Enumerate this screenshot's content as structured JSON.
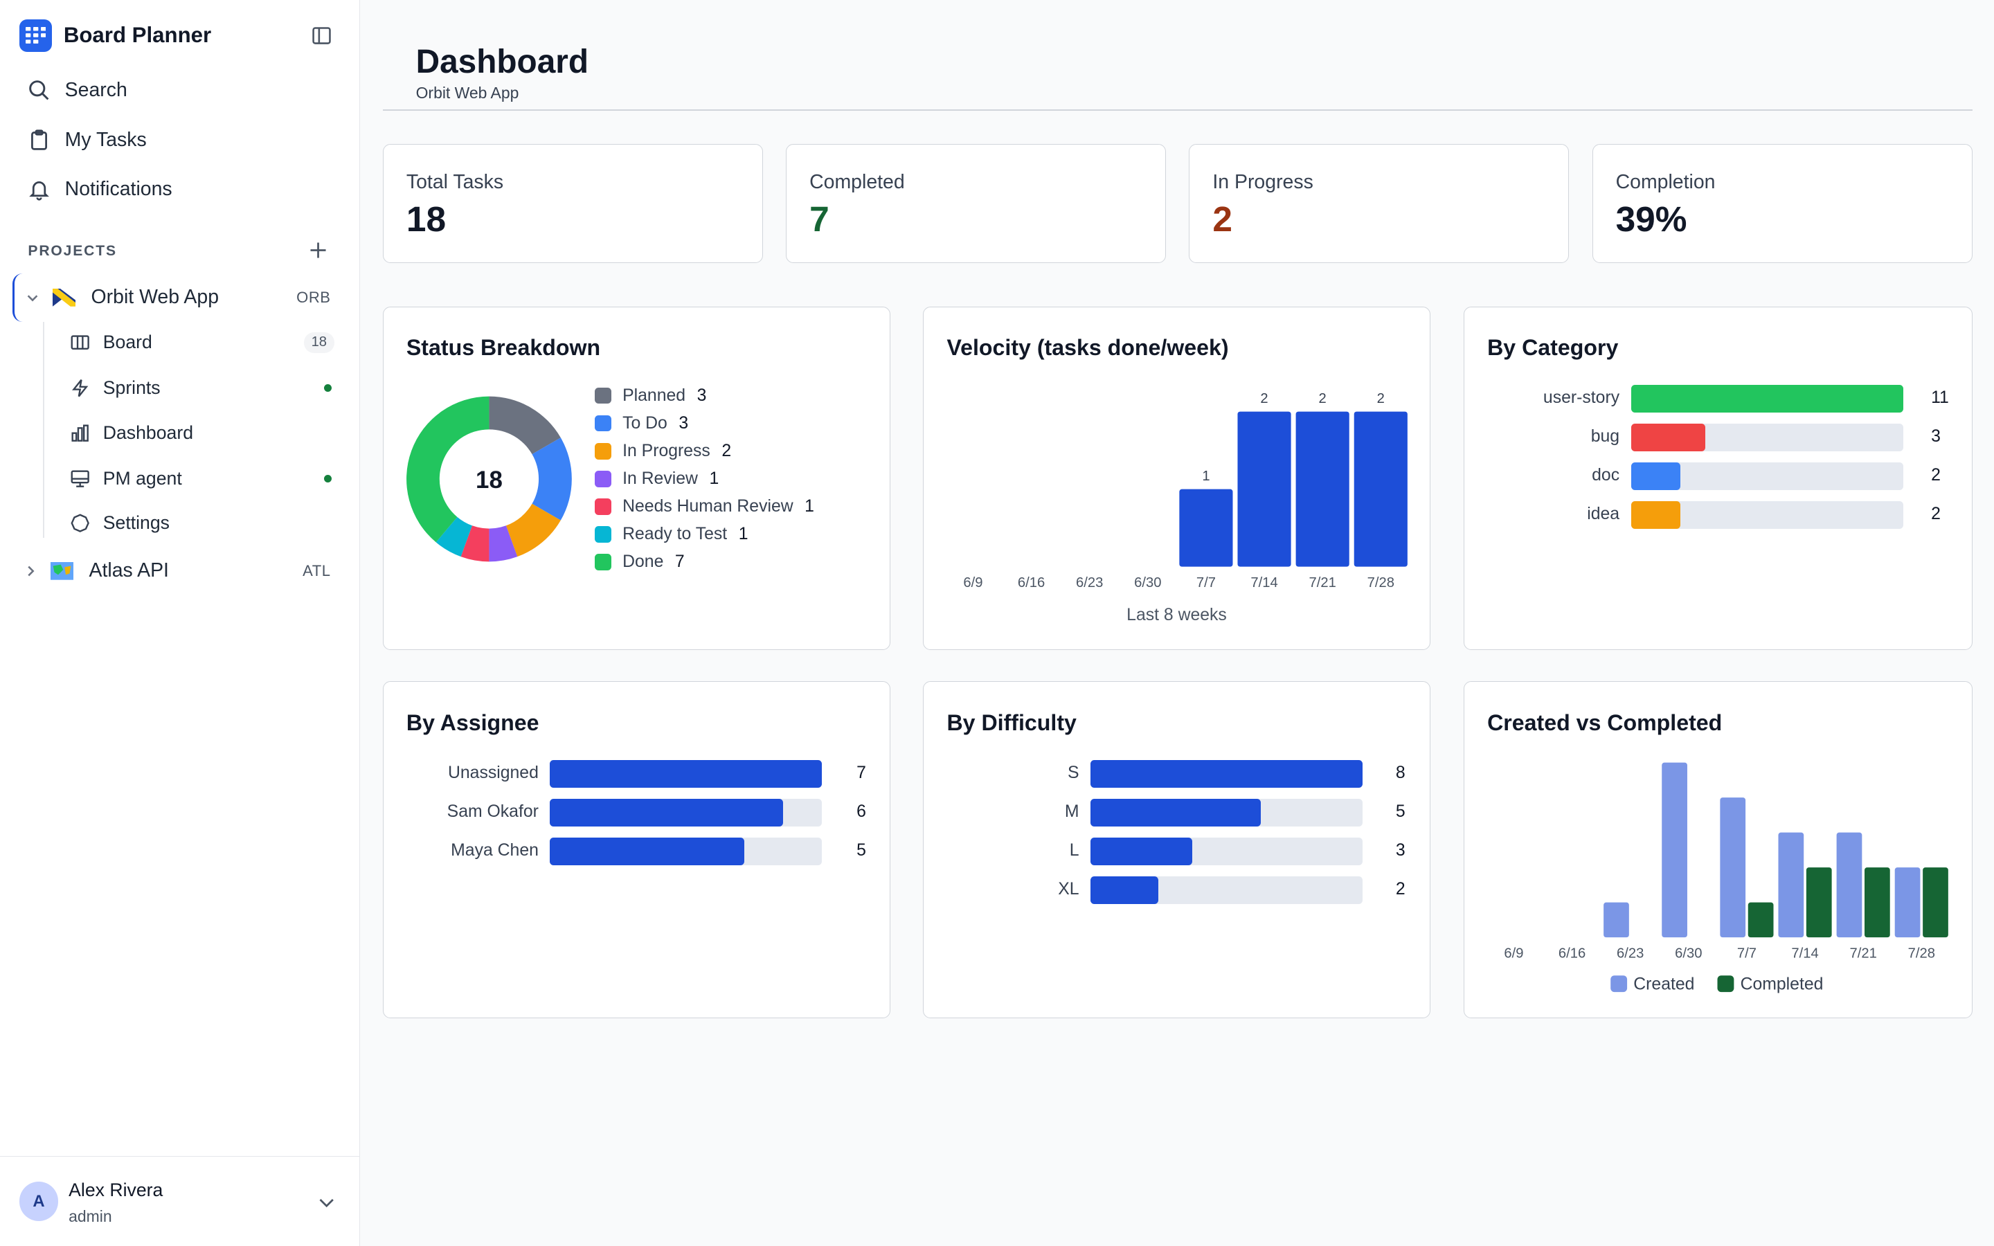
{
  "app": {
    "name": "Board Planner"
  },
  "nav": {
    "search": "Search",
    "my_tasks": "My Tasks",
    "notifications": "Notifications"
  },
  "projects": {
    "section_label": "PROJECTS",
    "items": [
      {
        "name": "Orbit Web App",
        "code": "ORB",
        "expanded": true,
        "subitems": [
          {
            "label": "Board",
            "badge": "18"
          },
          {
            "label": "Sprints",
            "dot": true
          },
          {
            "label": "Dashboard"
          },
          {
            "label": "PM agent",
            "dot": true
          },
          {
            "label": "Settings"
          }
        ]
      },
      {
        "name": "Atlas API",
        "code": "ATL",
        "expanded": false
      }
    ]
  },
  "user": {
    "initial": "A",
    "name": "Alex Rivera",
    "role": "admin"
  },
  "page": {
    "title": "Dashboard",
    "subtitle": "Orbit Web App"
  },
  "stats": [
    {
      "label": "Total Tasks",
      "value": "18",
      "color": "#111827"
    },
    {
      "label": "Completed",
      "value": "7",
      "color": "#166534"
    },
    {
      "label": "In Progress",
      "value": "2",
      "color": "#9a3412"
    },
    {
      "label": "Completion",
      "value": "39%",
      "color": "#111827"
    }
  ],
  "status_breakdown": {
    "title": "Status Breakdown",
    "total": "18",
    "items": [
      {
        "label": "Planned",
        "count": 3,
        "color": "#6b7280"
      },
      {
        "label": "To Do",
        "count": 3,
        "color": "#3b82f6"
      },
      {
        "label": "In Progress",
        "count": 2,
        "color": "#f59e0b"
      },
      {
        "label": "In Review",
        "count": 1,
        "color": "#8b5cf6"
      },
      {
        "label": "Needs Human Review",
        "count": 1,
        "color": "#f43f5e"
      },
      {
        "label": "Ready to Test",
        "count": 1,
        "color": "#06b6d4"
      },
      {
        "label": "Done",
        "count": 7,
        "color": "#22c55e"
      }
    ]
  },
  "velocity": {
    "title": "Velocity (tasks done/week)",
    "caption": "Last 8 weeks",
    "color": "#1d4ed8"
  },
  "by_category": {
    "title": "By Category",
    "max": 11,
    "items": [
      {
        "label": "user-story",
        "value": 11,
        "color": "#22c55e"
      },
      {
        "label": "bug",
        "value": 3,
        "color": "#ef4444"
      },
      {
        "label": "doc",
        "value": 2,
        "color": "#3b82f6"
      },
      {
        "label": "idea",
        "value": 2,
        "color": "#f59e0b"
      }
    ]
  },
  "by_assignee": {
    "title": "By Assignee",
    "max": 7,
    "items": [
      {
        "label": "Unassigned",
        "value": 7
      },
      {
        "label": "Sam Okafor",
        "value": 6
      },
      {
        "label": "Maya Chen",
        "value": 5
      }
    ]
  },
  "by_difficulty": {
    "title": "By Difficulty",
    "max": 8,
    "items": [
      {
        "label": "S",
        "value": 8
      },
      {
        "label": "M",
        "value": 5
      },
      {
        "label": "L",
        "value": 3
      },
      {
        "label": "XL",
        "value": 2
      }
    ]
  },
  "created_vs_completed": {
    "title": "Created vs Completed"
  },
  "chart_data": [
    {
      "type": "pie",
      "title": "Status Breakdown",
      "categories": [
        "Planned",
        "To Do",
        "In Progress",
        "In Review",
        "Needs Human Review",
        "Ready to Test",
        "Done"
      ],
      "values": [
        3,
        3,
        2,
        1,
        1,
        1,
        7
      ]
    },
    {
      "type": "bar",
      "title": "Velocity (tasks done/week)",
      "categories": [
        "6/9",
        "6/16",
        "6/23",
        "6/30",
        "7/7",
        "7/14",
        "7/21",
        "7/28"
      ],
      "values": [
        0,
        0,
        0,
        0,
        1,
        2,
        2,
        2
      ],
      "xlabel": "Last 8 weeks"
    },
    {
      "type": "bar",
      "title": "By Category",
      "categories": [
        "user-story",
        "bug",
        "doc",
        "idea"
      ],
      "values": [
        11,
        3,
        2,
        2
      ]
    },
    {
      "type": "bar",
      "title": "By Assignee",
      "categories": [
        "Unassigned",
        "Sam Okafor",
        "Maya Chen"
      ],
      "values": [
        7,
        6,
        5
      ]
    },
    {
      "type": "bar",
      "title": "By Difficulty",
      "categories": [
        "S",
        "M",
        "L",
        "XL"
      ],
      "values": [
        8,
        5,
        3,
        2
      ]
    },
    {
      "type": "bar",
      "title": "Created vs Completed",
      "categories": [
        "6/9",
        "6/16",
        "6/23",
        "6/30",
        "7/7",
        "7/14",
        "7/21",
        "7/28"
      ],
      "ylim": [
        0,
        5
      ],
      "series": [
        {
          "name": "Created",
          "color": "#7b96e6",
          "values": [
            0,
            0,
            1,
            5,
            4,
            3,
            3,
            2
          ]
        },
        {
          "name": "Completed",
          "color": "#166534",
          "values": [
            0,
            0,
            0,
            0,
            1,
            2,
            2,
            2
          ]
        }
      ]
    }
  ]
}
